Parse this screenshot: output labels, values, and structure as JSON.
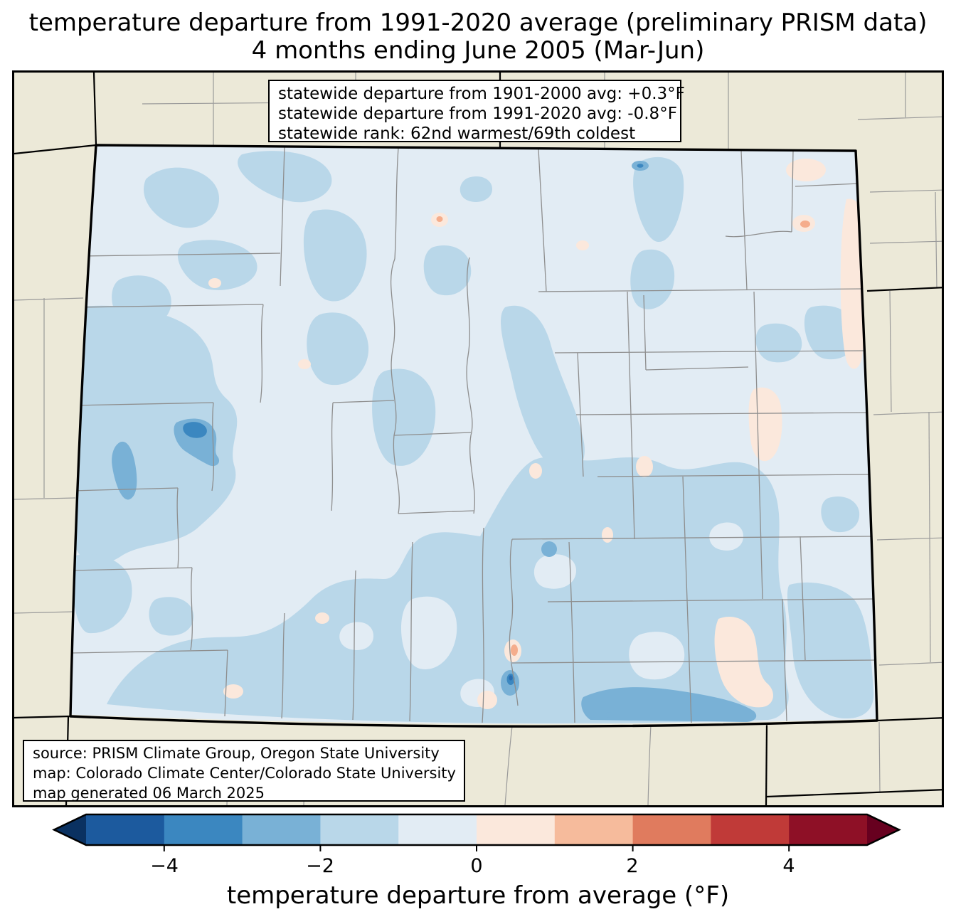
{
  "title": {
    "line1": "temperature departure from 1991-2020 average (preliminary PRISM data)",
    "line2": "4 months ending June 2005 (Mar-Jun)"
  },
  "stats_box": {
    "line1": "statewide departure from 1901-2000 avg: +0.3°F",
    "line2": "statewide departure from 1991-2020 avg: -0.8°F",
    "line3": "statewide rank: 62nd warmest/69th coldest"
  },
  "source_box": {
    "line1": "source: PRISM Climate Group, Oregon State University",
    "line2": "map: Colorado Climate Center/Colorado State University",
    "line3": "map generated 06 March 2025"
  },
  "colorbar": {
    "label": "temperature departure from average (°F)",
    "tick_labels": [
      "−4",
      "−2",
      "0",
      "2",
      "4"
    ],
    "tick_values": [
      -4,
      -2,
      0,
      2,
      4
    ],
    "range_min": -5,
    "range_max": 5,
    "segment_colors": [
      "#1c5a9e",
      "#3b87c0",
      "#79b1d6",
      "#b9d7e9",
      "#e2ecf4",
      "#fbe8dc",
      "#f6bb9c",
      "#e07b5e",
      "#c03a38",
      "#8e1026"
    ],
    "under_color": "#0a3161",
    "over_color": "#67001f"
  },
  "map": {
    "region": "Colorado",
    "surround_color": "#ece9d8",
    "anomaly_colors": {
      "minus1_to_0": "#e2ecf4",
      "minus2_to_minus1": "#b9d7e9",
      "minus3_to_minus2": "#79b1d6",
      "minus4_to_minus3": "#3b87c0",
      "0_to_plus1": "#fbe8dc",
      "plus1_to_plus2": "#f6bb9c"
    },
    "border_color": "#000000",
    "county_line_color": "#8e8e8e"
  }
}
